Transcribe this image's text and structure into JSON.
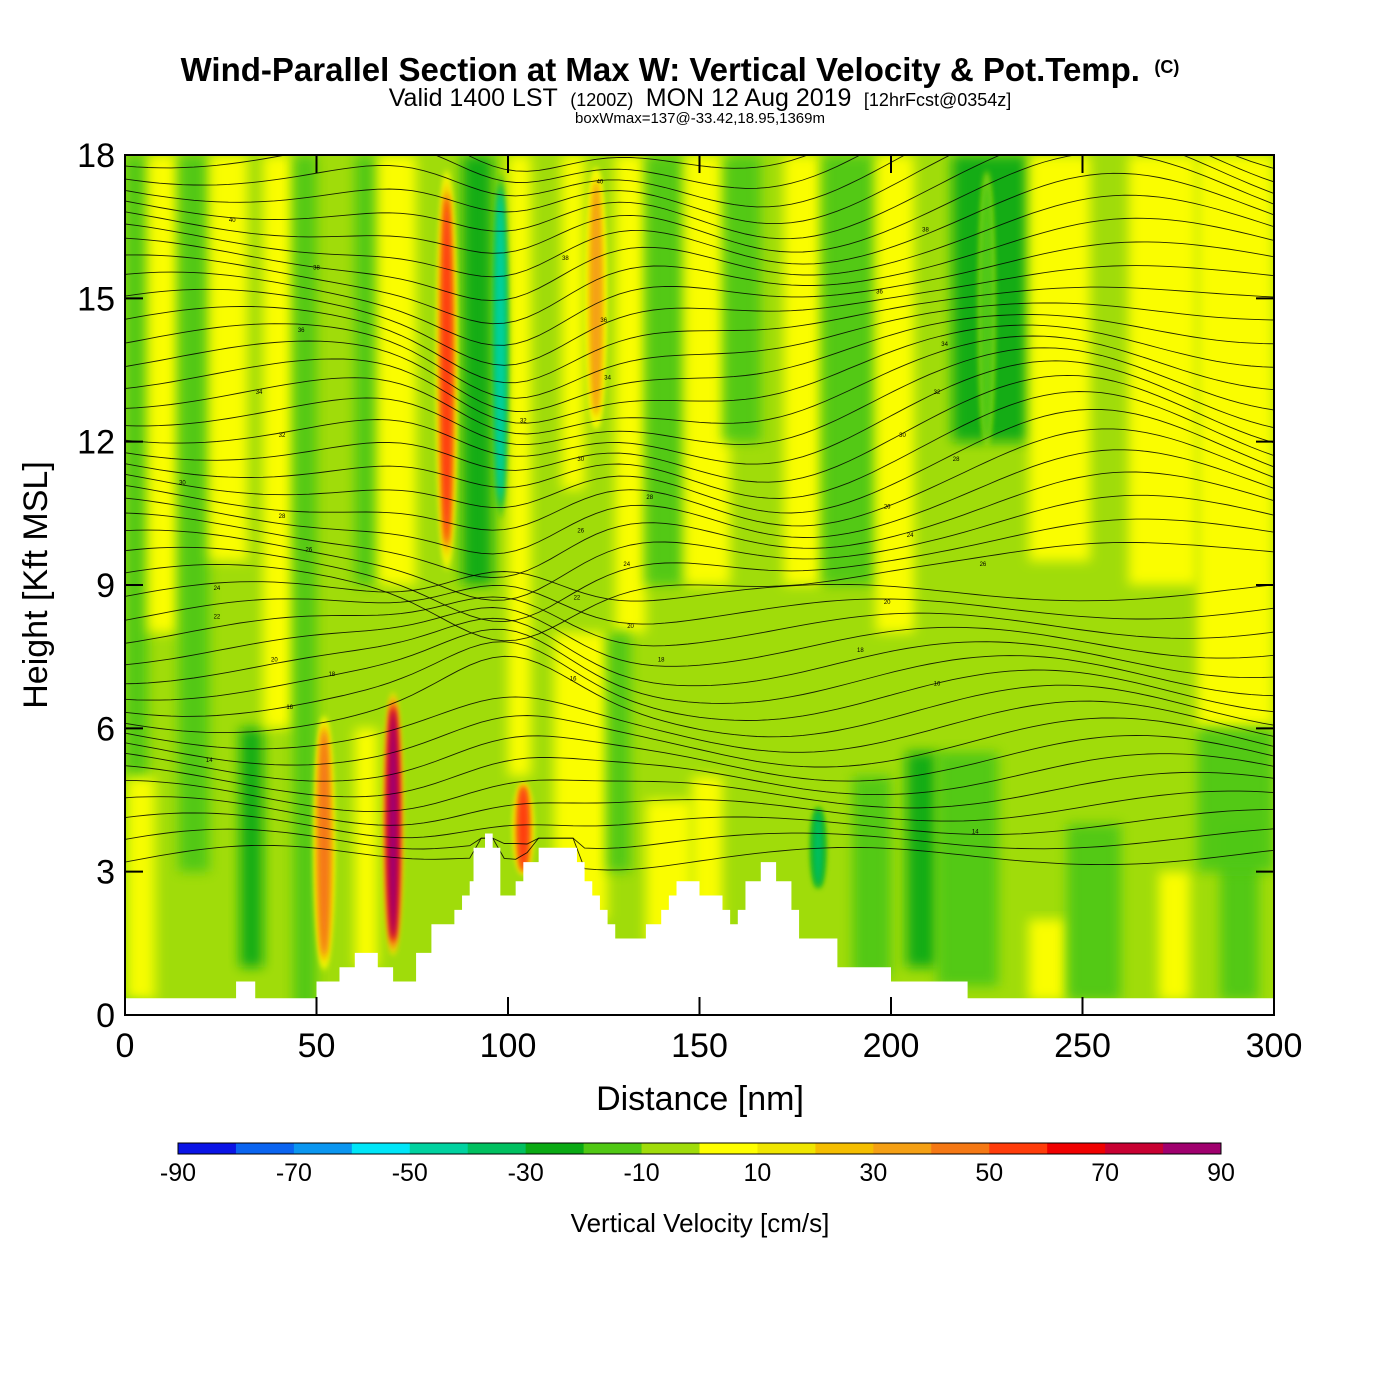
{
  "title": {
    "main": "Wind-Parallel Section at Max W: Vertical Velocity & Pot.Temp.",
    "copyright": "(C)",
    "valid_prefix": "Valid 1400 LST",
    "valid_utc": "(1200Z)",
    "valid_date": "MON 12 Aug 2019",
    "forecast": "[12hrFcst@0354z]",
    "boxwmax": "boxWmax=137@-33.42,18.95,1369m"
  },
  "chart_data": {
    "type": "heatmap",
    "title": "Wind-Parallel Section at Max W: Vertical Velocity & Pot.Temp.",
    "xlabel": "Distance [nm]",
    "ylabel": "Height [Kft MSL]",
    "xlim": [
      0,
      300
    ],
    "ylim": [
      0,
      18
    ],
    "xticks": [
      "0",
      "50",
      "100",
      "150",
      "200",
      "250",
      "300"
    ],
    "yticks": [
      "0",
      "3",
      "6",
      "9",
      "12",
      "15",
      "18"
    ],
    "colorbar": {
      "title": "Vertical Velocity [cm/s]",
      "labels": [
        "-90",
        "-70",
        "-50",
        "-30",
        "-10",
        "10",
        "30",
        "50",
        "70",
        "90"
      ],
      "levels": [
        -90,
        -80,
        -70,
        -60,
        -50,
        -40,
        -30,
        -20,
        -10,
        10,
        20,
        30,
        40,
        50,
        60,
        70,
        80,
        90
      ],
      "colors": [
        "#0a14e6",
        "#0a64f0",
        "#0a96f0",
        "#00e6f8",
        "#00d2a0",
        "#00c060",
        "#0aaa14",
        "#50c814",
        "#a0dc0a",
        "#ffff00",
        "#f0e600",
        "#f5be00",
        "#f5a014",
        "#f57814",
        "#ff3c0a",
        "#f00000",
        "#c80032",
        "#a0006e"
      ]
    },
    "terrain_nm_kft": [
      [
        0,
        0.35
      ],
      [
        29,
        0.35
      ],
      [
        29,
        0.7
      ],
      [
        34,
        0.7
      ],
      [
        34,
        0.35
      ],
      [
        50,
        0.35
      ],
      [
        50,
        0.7
      ],
      [
        56,
        0.7
      ],
      [
        56,
        1.0
      ],
      [
        60,
        1.0
      ],
      [
        60,
        1.3
      ],
      [
        66,
        1.3
      ],
      [
        66,
        1.0
      ],
      [
        70,
        1.0
      ],
      [
        70,
        0.7
      ],
      [
        76,
        0.7
      ],
      [
        76,
        1.3
      ],
      [
        80,
        1.3
      ],
      [
        80,
        1.9
      ],
      [
        86,
        1.9
      ],
      [
        86,
        2.2
      ],
      [
        88,
        2.2
      ],
      [
        88,
        2.5
      ],
      [
        90,
        2.5
      ],
      [
        90,
        2.8
      ],
      [
        91,
        2.8
      ],
      [
        91,
        3.5
      ],
      [
        94,
        3.5
      ],
      [
        94,
        3.8
      ],
      [
        96,
        3.8
      ],
      [
        96,
        3.5
      ],
      [
        98,
        3.5
      ],
      [
        98,
        2.5
      ],
      [
        102,
        2.5
      ],
      [
        102,
        2.8
      ],
      [
        104,
        2.8
      ],
      [
        104,
        3.2
      ],
      [
        108,
        3.2
      ],
      [
        108,
        3.5
      ],
      [
        118,
        3.5
      ],
      [
        118,
        3.2
      ],
      [
        120,
        3.2
      ],
      [
        120,
        2.8
      ],
      [
        122,
        2.8
      ],
      [
        122,
        2.5
      ],
      [
        124,
        2.5
      ],
      [
        124,
        2.2
      ],
      [
        126,
        2.2
      ],
      [
        126,
        1.9
      ],
      [
        128,
        1.9
      ],
      [
        128,
        1.6
      ],
      [
        136,
        1.6
      ],
      [
        136,
        1.9
      ],
      [
        140,
        1.9
      ],
      [
        140,
        2.2
      ],
      [
        142,
        2.2
      ],
      [
        142,
        2.5
      ],
      [
        144,
        2.5
      ],
      [
        144,
        2.8
      ],
      [
        150,
        2.8
      ],
      [
        150,
        2.5
      ],
      [
        156,
        2.5
      ],
      [
        156,
        2.2
      ],
      [
        158,
        2.2
      ],
      [
        158,
        1.9
      ],
      [
        160,
        1.9
      ],
      [
        160,
        2.2
      ],
      [
        162,
        2.2
      ],
      [
        162,
        2.8
      ],
      [
        166,
        2.8
      ],
      [
        166,
        3.2
      ],
      [
        170,
        3.2
      ],
      [
        170,
        2.8
      ],
      [
        174,
        2.8
      ],
      [
        174,
        2.2
      ],
      [
        176,
        2.2
      ],
      [
        176,
        1.6
      ],
      [
        186,
        1.6
      ],
      [
        186,
        1.0
      ],
      [
        200,
        1.0
      ],
      [
        200,
        0.7
      ],
      [
        220,
        0.7
      ],
      [
        220,
        0.35
      ],
      [
        300,
        0.35
      ]
    ],
    "updraft_columns": [
      {
        "x_nm": 70,
        "peak_cm_s": 90,
        "bottom_kft": 1.0,
        "top_kft": 7.0
      },
      {
        "x_nm": 84,
        "peak_cm_s": 60,
        "bottom_kft": 9.0,
        "top_kft": 18.0
      },
      {
        "x_nm": 123,
        "peak_cm_s": 40,
        "bottom_kft": 12.0,
        "top_kft": 18.0
      },
      {
        "x_nm": 104,
        "peak_cm_s": 60,
        "bottom_kft": 2.8,
        "top_kft": 5.0
      },
      {
        "x_nm": 52,
        "peak_cm_s": 50,
        "bottom_kft": 0.7,
        "top_kft": 6.5
      }
    ],
    "downdraft_columns": [
      {
        "x_nm": 98,
        "peak_cm_s": -50,
        "bottom_kft": 10.0,
        "top_kft": 18.0
      },
      {
        "x_nm": 181,
        "peak_cm_s": -40,
        "bottom_kft": 2.5,
        "top_kft": 4.5
      },
      {
        "x_nm": 225,
        "peak_cm_s": -20,
        "bottom_kft": 11.5,
        "top_kft": 18.0
      }
    ],
    "contour_labels": [
      {
        "text": "40",
        "x_nm": 28,
        "y_kft": 16.6
      },
      {
        "text": "38",
        "x_nm": 50,
        "y_kft": 15.6
      },
      {
        "text": "36",
        "x_nm": 46,
        "y_kft": 14.3
      },
      {
        "text": "34",
        "x_nm": 35,
        "y_kft": 13.0
      },
      {
        "text": "32",
        "x_nm": 41,
        "y_kft": 12.1
      },
      {
        "text": "30",
        "x_nm": 15,
        "y_kft": 11.1
      },
      {
        "text": "28",
        "x_nm": 41,
        "y_kft": 10.4
      },
      {
        "text": "26",
        "x_nm": 48,
        "y_kft": 9.7
      },
      {
        "text": "24",
        "x_nm": 24,
        "y_kft": 8.9
      },
      {
        "text": "22",
        "x_nm": 24,
        "y_kft": 8.3
      },
      {
        "text": "20",
        "x_nm": 39,
        "y_kft": 7.4
      },
      {
        "text": "18",
        "x_nm": 54,
        "y_kft": 7.1
      },
      {
        "text": "16",
        "x_nm": 43,
        "y_kft": 6.4
      },
      {
        "text": "14",
        "x_nm": 22,
        "y_kft": 5.3
      },
      {
        "text": "40",
        "x_nm": 124,
        "y_kft": 17.4
      },
      {
        "text": "38",
        "x_nm": 115,
        "y_kft": 15.8
      },
      {
        "text": "36",
        "x_nm": 125,
        "y_kft": 14.5
      },
      {
        "text": "34",
        "x_nm": 126,
        "y_kft": 13.3
      },
      {
        "text": "32",
        "x_nm": 104,
        "y_kft": 12.4
      },
      {
        "text": "30",
        "x_nm": 119,
        "y_kft": 11.6
      },
      {
        "text": "28",
        "x_nm": 137,
        "y_kft": 10.8
      },
      {
        "text": "26",
        "x_nm": 119,
        "y_kft": 10.1
      },
      {
        "text": "24",
        "x_nm": 131,
        "y_kft": 9.4
      },
      {
        "text": "22",
        "x_nm": 118,
        "y_kft": 8.7
      },
      {
        "text": "20",
        "x_nm": 132,
        "y_kft": 8.1
      },
      {
        "text": "18",
        "x_nm": 140,
        "y_kft": 7.4
      },
      {
        "text": "16",
        "x_nm": 117,
        "y_kft": 7.0
      },
      {
        "text": "38",
        "x_nm": 209,
        "y_kft": 16.4
      },
      {
        "text": "36",
        "x_nm": 197,
        "y_kft": 15.1
      },
      {
        "text": "34",
        "x_nm": 214,
        "y_kft": 14.0
      },
      {
        "text": "32",
        "x_nm": 212,
        "y_kft": 13.0
      },
      {
        "text": "30",
        "x_nm": 203,
        "y_kft": 12.1
      },
      {
        "text": "28",
        "x_nm": 217,
        "y_kft": 11.6
      },
      {
        "text": "26",
        "x_nm": 199,
        "y_kft": 10.6
      },
      {
        "text": "24",
        "x_nm": 205,
        "y_kft": 10.0
      },
      {
        "text": "26",
        "x_nm": 224,
        "y_kft": 9.4
      },
      {
        "text": "20",
        "x_nm": 199,
        "y_kft": 8.6
      },
      {
        "text": "18",
        "x_nm": 192,
        "y_kft": 7.6
      },
      {
        "text": "16",
        "x_nm": 212,
        "y_kft": 6.9
      },
      {
        "text": "14",
        "x_nm": 222,
        "y_kft": 3.8
      }
    ]
  }
}
